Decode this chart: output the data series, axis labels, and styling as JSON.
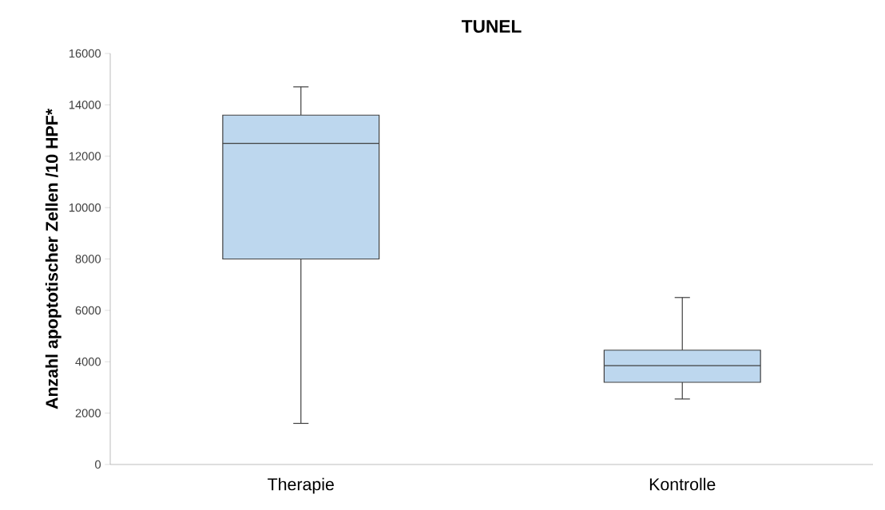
{
  "chart_data": {
    "type": "box",
    "title": "TUNEL",
    "ylabel": "Anzahl apoptotischer Zellen /10 HPF*",
    "categories": [
      "Therapie",
      "Kontrolle"
    ],
    "boxes": [
      {
        "low": 1600,
        "q1": 8000,
        "median": 12500,
        "q3": 13600,
        "high": 14700
      },
      {
        "low": 2550,
        "q1": 3200,
        "median": 3850,
        "q3": 4450,
        "high": 6500
      }
    ],
    "color": "#bdd7ee",
    "ylim": [
      0,
      16000
    ],
    "yticks": [
      0,
      2000,
      4000,
      6000,
      8000,
      10000,
      12000,
      14000,
      16000
    ]
  }
}
